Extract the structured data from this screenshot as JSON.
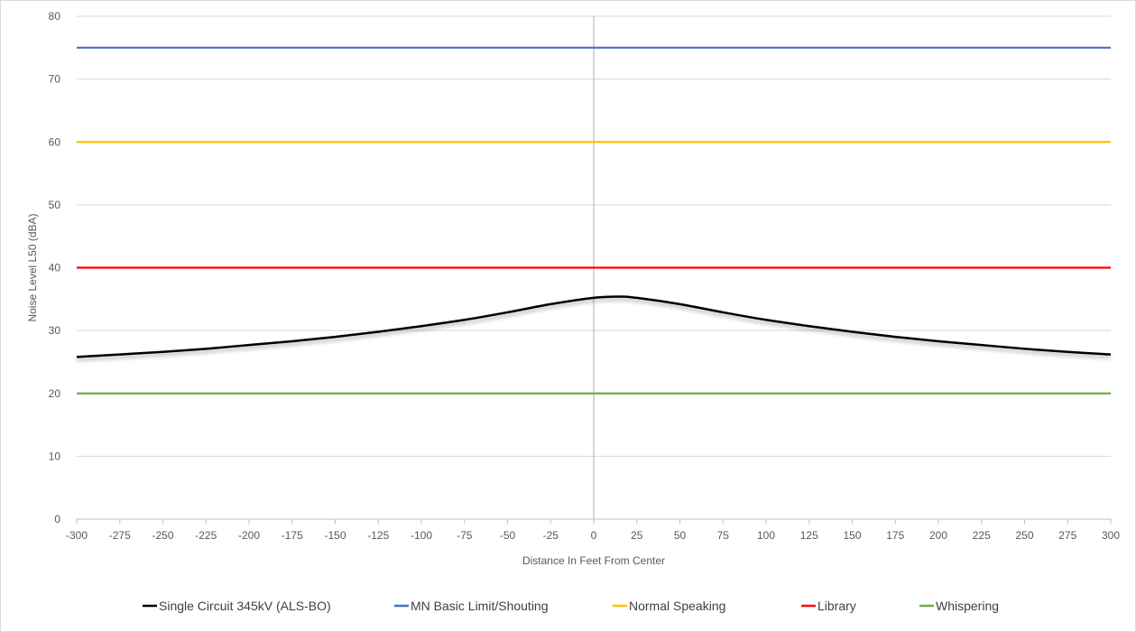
{
  "chart_data": {
    "type": "line",
    "title": "",
    "xlabel": "Distance In Feet From Center",
    "ylabel": "Noise Level L50 (dBA)",
    "xlim": [
      -300,
      300
    ],
    "ylim": [
      0,
      80
    ],
    "xticks": [
      -300,
      -275,
      -250,
      -225,
      -200,
      -175,
      -150,
      -125,
      -100,
      -75,
      -50,
      -25,
      0,
      25,
      50,
      75,
      100,
      125,
      150,
      175,
      200,
      225,
      250,
      275,
      300
    ],
    "yticks": [
      0,
      10,
      20,
      30,
      40,
      50,
      60,
      70,
      80
    ],
    "grid": "horizontal",
    "legend_position": "bottom",
    "series": [
      {
        "name": "Single Circuit 345kV (ALS-BO)",
        "color": "#000000",
        "x": [
          -300,
          -275,
          -250,
          -225,
          -200,
          -175,
          -150,
          -125,
          -100,
          -75,
          -50,
          -25,
          0,
          15,
          25,
          50,
          75,
          100,
          125,
          150,
          175,
          200,
          225,
          250,
          275,
          300
        ],
        "y": [
          25.8,
          26.2,
          26.6,
          27.1,
          27.7,
          28.3,
          29.0,
          29.8,
          30.7,
          31.7,
          32.9,
          34.2,
          35.2,
          35.4,
          35.2,
          34.2,
          32.9,
          31.7,
          30.7,
          29.8,
          29.0,
          28.3,
          27.7,
          27.1,
          26.6,
          26.2
        ]
      },
      {
        "name": "MN Basic Limit/Shouting",
        "color": "#4472c4",
        "x": [
          -300,
          300
        ],
        "y": [
          75,
          75
        ]
      },
      {
        "name": "Normal Speaking",
        "color": "#ffc000",
        "x": [
          -300,
          300
        ],
        "y": [
          60,
          60
        ]
      },
      {
        "name": "Library",
        "color": "#ff0000",
        "x": [
          -300,
          300
        ],
        "y": [
          40,
          40
        ]
      },
      {
        "name": "Whispering",
        "color": "#70ad47",
        "x": [
          -300,
          300
        ],
        "y": [
          20,
          20
        ]
      }
    ]
  }
}
